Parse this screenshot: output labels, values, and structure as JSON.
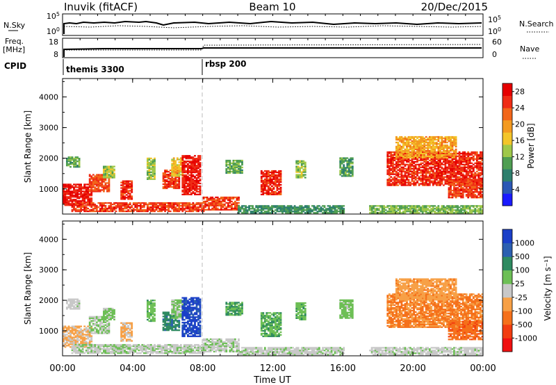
{
  "header": {
    "station": "Inuvik (fitACF)",
    "beam": "Beam 10",
    "date": "20/Dec/2015"
  },
  "top_panels": {
    "nsky_label": "N.Sky",
    "nsearch_label": "N.Search",
    "nsky_ticks": [
      "10^5",
      "10^0"
    ],
    "nsky_ticks_right": [
      "10^5",
      "10^0"
    ],
    "freq_label_1": "Freq.",
    "freq_label_2": "[MHz]",
    "freq_ticks": [
      "18",
      "8"
    ],
    "nave_label": "Nave",
    "nave_ticks": [
      "60",
      "0"
    ],
    "cpid_label": "CPID",
    "cpid_modes": [
      {
        "label": "themis 3300",
        "start_hour": 0
      },
      {
        "label": "rbsp 200",
        "start_hour": 8
      }
    ]
  },
  "x_axis": {
    "label": "Time UT",
    "ticks": [
      "00:00",
      "04:00",
      "08:00",
      "12:00",
      "16:00",
      "20:00",
      "00:00"
    ]
  },
  "colors": {
    "power": [
      "#1a1aff",
      "#2a57b5",
      "#2d7f6d",
      "#4f9e52",
      "#9fc84a",
      "#f3c52a",
      "#f39a20",
      "#f2661a",
      "#ef2c15",
      "#e60000"
    ],
    "velocity": [
      "#f01010",
      "#f23c10",
      "#f5701a",
      "#f7a046",
      "#c8c8c8",
      "#6dbf55",
      "#2e8a60",
      "#2b5fb0",
      "#1a3fc8"
    ]
  },
  "chart_data": [
    {
      "type": "heatmap",
      "panel": "power",
      "ylabel": "Slant Range [km]",
      "xlabel": "",
      "y_ticks": [
        "1000",
        "2000",
        "3000",
        "4000"
      ],
      "ylim": [
        180,
        4600
      ],
      "xlim": [
        0,
        24
      ],
      "colorbar_label": "Power [dB]",
      "colorbar_ticks": [
        "4",
        "8",
        "12",
        "16",
        "20",
        "24",
        "28"
      ],
      "clim": [
        0,
        30
      ],
      "regions": [
        {
          "t0": 0.0,
          "t1": 1.7,
          "r0": 450,
          "r1": 1150,
          "v": 27
        },
        {
          "t0": 0.2,
          "t1": 0.9,
          "r0": 1700,
          "r1": 2050,
          "v": 11
        },
        {
          "t0": 1.5,
          "t1": 2.7,
          "r0": 900,
          "r1": 1450,
          "v": 24
        },
        {
          "t0": 2.3,
          "t1": 3.0,
          "r0": 1350,
          "r1": 1750,
          "v": 14
        },
        {
          "t0": 3.3,
          "t1": 4.0,
          "r0": 650,
          "r1": 1250,
          "v": 26
        },
        {
          "t0": 0.5,
          "t1": 8.0,
          "r0": 250,
          "r1": 550,
          "v": 25
        },
        {
          "t0": 4.8,
          "t1": 5.2,
          "r0": 1300,
          "r1": 2000,
          "v": 13
        },
        {
          "t0": 5.7,
          "t1": 6.6,
          "r0": 1000,
          "r1": 1600,
          "v": 25
        },
        {
          "t0": 6.2,
          "t1": 6.8,
          "r0": 1400,
          "r1": 2000,
          "v": 17
        },
        {
          "t0": 6.8,
          "t1": 7.8,
          "r0": 800,
          "r1": 2100,
          "v": 27
        },
        {
          "t0": 8.0,
          "t1": 10.0,
          "r0": 300,
          "r1": 750,
          "v": 25
        },
        {
          "t0": 10.0,
          "t1": 16.0,
          "r0": 200,
          "r1": 450,
          "v": 9
        },
        {
          "t0": 9.3,
          "t1": 10.2,
          "r0": 1500,
          "r1": 1950,
          "v": 11
        },
        {
          "t0": 11.3,
          "t1": 12.4,
          "r0": 800,
          "r1": 1600,
          "v": 26
        },
        {
          "t0": 13.3,
          "t1": 13.8,
          "r0": 1350,
          "r1": 1900,
          "v": 13
        },
        {
          "t0": 15.8,
          "t1": 16.6,
          "r0": 1400,
          "r1": 2000,
          "v": 10
        },
        {
          "t0": 18.5,
          "t1": 24.0,
          "r0": 1100,
          "r1": 2200,
          "v": 26
        },
        {
          "t0": 19.0,
          "t1": 22.5,
          "r0": 2000,
          "r1": 2700,
          "v": 19
        },
        {
          "t0": 22.0,
          "t1": 24.0,
          "r0": 700,
          "r1": 1300,
          "v": 25
        },
        {
          "t0": 17.5,
          "t1": 24.0,
          "r0": 200,
          "r1": 450,
          "v": 12
        }
      ]
    },
    {
      "type": "heatmap",
      "panel": "velocity",
      "ylabel": "Slant Range [km]",
      "xlabel": "Time UT",
      "y_ticks": [
        "1000",
        "2000",
        "3000",
        "4000"
      ],
      "ylim": [
        180,
        4600
      ],
      "xlim": [
        0,
        24
      ],
      "colorbar_label": "Velocity [m s⁻¹]",
      "colorbar_ticks": [
        "-1000",
        "-500",
        "-100",
        "-25",
        "25",
        "100",
        "500",
        "1000"
      ],
      "clim": [
        -1250,
        1250
      ],
      "regions": [
        {
          "t0": 0.0,
          "t1": 1.7,
          "r0": 450,
          "r1": 1150,
          "v": -180
        },
        {
          "t0": 0.2,
          "t1": 0.9,
          "r0": 1700,
          "r1": 2050,
          "v": 20
        },
        {
          "t0": 1.5,
          "t1": 2.7,
          "r0": 900,
          "r1": 1450,
          "v": 150
        },
        {
          "t0": 2.3,
          "t1": 3.0,
          "r0": 1350,
          "r1": 1750,
          "v": 200
        },
        {
          "t0": 3.3,
          "t1": 4.0,
          "r0": 650,
          "r1": 1250,
          "v": -200
        },
        {
          "t0": 0.5,
          "t1": 8.0,
          "r0": 250,
          "r1": 550,
          "v": 80
        },
        {
          "t0": 4.8,
          "t1": 5.2,
          "r0": 1300,
          "r1": 2000,
          "v": 300
        },
        {
          "t0": 5.7,
          "t1": 6.6,
          "r0": 1000,
          "r1": 1600,
          "v": 600
        },
        {
          "t0": 6.2,
          "t1": 6.8,
          "r0": 1400,
          "r1": 2000,
          "v": 200
        },
        {
          "t0": 6.8,
          "t1": 7.8,
          "r0": 800,
          "r1": 2100,
          "v": 1050
        },
        {
          "t0": 8.0,
          "t1": 10.0,
          "r0": 300,
          "r1": 750,
          "v": 90
        },
        {
          "t0": 10.0,
          "t1": 16.0,
          "r0": 200,
          "r1": 450,
          "v": 60
        },
        {
          "t0": 9.3,
          "t1": 10.2,
          "r0": 1500,
          "r1": 1950,
          "v": 400
        },
        {
          "t0": 11.3,
          "t1": 12.4,
          "r0": 800,
          "r1": 1600,
          "v": 350
        },
        {
          "t0": 13.3,
          "t1": 13.8,
          "r0": 1350,
          "r1": 1900,
          "v": 300
        },
        {
          "t0": 15.8,
          "t1": 16.6,
          "r0": 1400,
          "r1": 2000,
          "v": 250
        },
        {
          "t0": 18.5,
          "t1": 24.0,
          "r0": 1100,
          "r1": 2200,
          "v": -450
        },
        {
          "t0": 19.0,
          "t1": 22.5,
          "r0": 2000,
          "r1": 2700,
          "v": -300
        },
        {
          "t0": 22.0,
          "t1": 24.0,
          "r0": 700,
          "r1": 1300,
          "v": -600
        },
        {
          "t0": 17.5,
          "t1": 24.0,
          "r0": 200,
          "r1": 450,
          "v": 40
        }
      ]
    }
  ]
}
